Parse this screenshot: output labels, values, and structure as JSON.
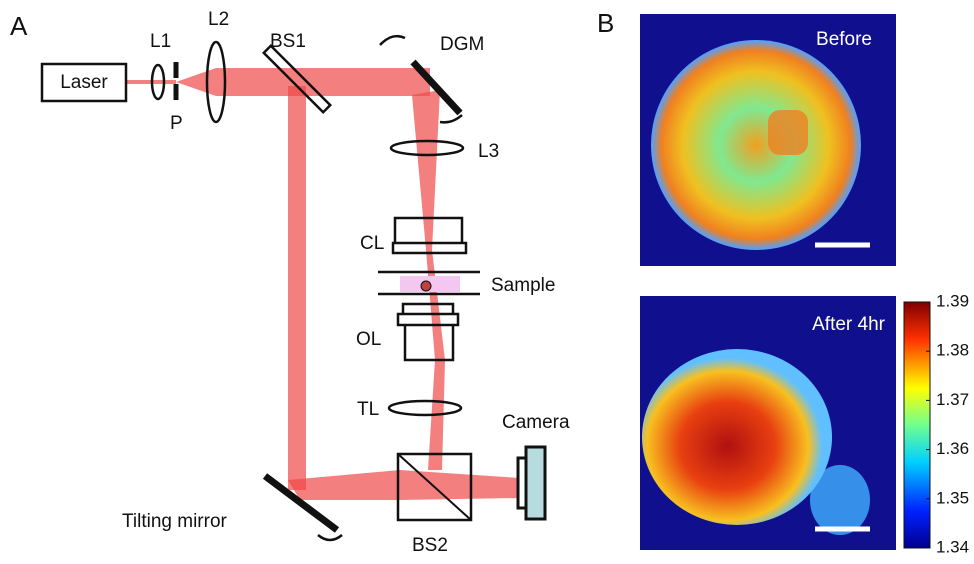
{
  "panel_a": {
    "label": "A",
    "components": {
      "laser": "Laser",
      "l1": "L1",
      "l2": "L2",
      "pinhole": "P",
      "bs1": "BS1",
      "dgm": "DGM",
      "l3": "L3",
      "cl": "CL",
      "sample": "Sample",
      "ol": "OL",
      "tl": "TL",
      "camera": "Camera",
      "tilting_mirror": "Tilting mirror",
      "bs2": "BS2"
    }
  },
  "panel_b": {
    "label": "B",
    "images": [
      {
        "title": "Before"
      },
      {
        "title": "After 4hr"
      }
    ],
    "colorbar": {
      "range": [
        1.34,
        1.39
      ],
      "ticks": [
        1.39,
        1.38,
        1.37,
        1.36,
        1.35,
        1.34
      ]
    }
  }
}
